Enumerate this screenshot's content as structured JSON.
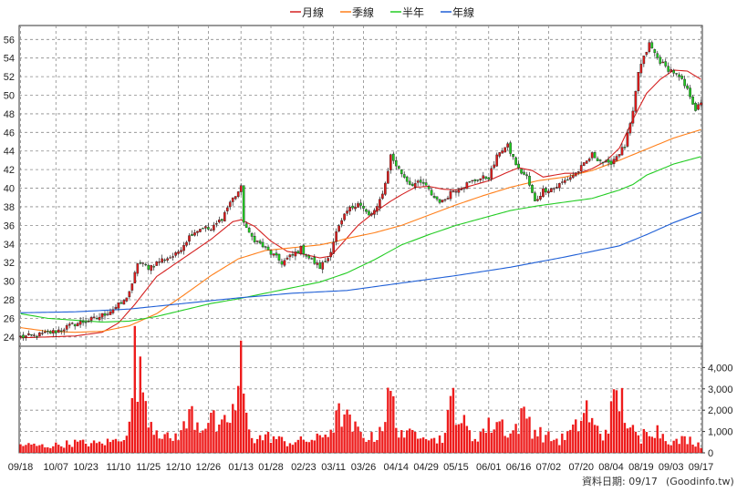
{
  "chart_data": {
    "type": "candlestick",
    "legend": [
      {
        "label": "月線",
        "color": "#d42020"
      },
      {
        "label": "季線",
        "color": "#ff7f1a"
      },
      {
        "label": "半年",
        "color": "#22cc22"
      },
      {
        "label": "年線",
        "color": "#1f5fd6"
      }
    ],
    "price_axis": {
      "ylim": [
        23,
        57.5
      ],
      "ticks": [
        "24",
        "26",
        "28",
        "30",
        "32",
        "34",
        "36",
        "38",
        "40",
        "42",
        "44",
        "46",
        "48",
        "50",
        "52",
        "54",
        "56"
      ]
    },
    "volume_axis": {
      "ylim": [
        0,
        5000
      ],
      "ticks": [
        "0",
        "1,000",
        "2,000",
        "3,000",
        "4,000"
      ]
    },
    "x_ticks": [
      "09/18",
      "10/07",
      "10/23",
      "11/10",
      "11/25",
      "12/10",
      "12/26",
      "01/13",
      "01/28",
      "02/23",
      "03/11",
      "03/26",
      "04/14",
      "04/29",
      "05/15",
      "06/01",
      "06/16",
      "07/02",
      "07/20",
      "08/04",
      "08/19",
      "09/03",
      "09/17"
    ],
    "x_tick_index": [
      0,
      13,
      24,
      36,
      47,
      58,
      69,
      81,
      92,
      104,
      115,
      126,
      138,
      149,
      160,
      172,
      183,
      194,
      206,
      217,
      228,
      239,
      250
    ],
    "n_days": 251,
    "price_keypoints": [
      [
        0,
        24
      ],
      [
        5,
        24.1
      ],
      [
        13,
        24.6
      ],
      [
        20,
        25.4
      ],
      [
        28,
        26
      ],
      [
        34,
        27
      ],
      [
        38,
        27.8
      ],
      [
        41,
        29.5
      ],
      [
        43,
        32
      ],
      [
        47,
        31.5
      ],
      [
        52,
        32.3
      ],
      [
        57,
        32.8
      ],
      [
        60,
        34
      ],
      [
        63,
        35.2
      ],
      [
        67,
        35.8
      ],
      [
        70,
        35.5
      ],
      [
        74,
        36.8
      ],
      [
        77,
        38.5
      ],
      [
        81,
        40
      ],
      [
        82,
        36.5
      ],
      [
        84,
        35
      ],
      [
        88,
        34
      ],
      [
        92,
        33
      ],
      [
        96,
        32
      ],
      [
        100,
        32.8
      ],
      [
        103,
        33.5
      ],
      [
        106,
        32.5
      ],
      [
        110,
        31.5
      ],
      [
        113,
        32.5
      ],
      [
        116,
        35.2
      ],
      [
        120,
        37.5
      ],
      [
        124,
        38.5
      ],
      [
        128,
        37
      ],
      [
        131,
        37.8
      ],
      [
        134,
        40.5
      ],
      [
        136,
        43.5
      ],
      [
        139,
        42
      ],
      [
        143,
        40.5
      ],
      [
        148,
        40.5
      ],
      [
        152,
        39
      ],
      [
        155,
        38.5
      ],
      [
        158,
        39.6
      ],
      [
        163,
        40.3
      ],
      [
        168,
        41
      ],
      [
        172,
        41.2
      ],
      [
        176,
        44
      ],
      [
        179,
        44.5
      ],
      [
        183,
        42
      ],
      [
        186,
        41.2
      ],
      [
        189,
        38.5
      ],
      [
        192,
        39.8
      ],
      [
        196,
        40
      ],
      [
        200,
        40.8
      ],
      [
        204,
        41.6
      ],
      [
        207,
        42.5
      ],
      [
        210,
        43.6
      ],
      [
        213,
        43
      ],
      [
        216,
        42.5
      ],
      [
        219,
        43.5
      ],
      [
        222,
        44.5
      ],
      [
        225,
        48
      ],
      [
        227,
        52.5
      ],
      [
        229,
        54
      ],
      [
        231,
        55.5
      ],
      [
        234,
        54
      ],
      [
        237,
        53
      ],
      [
        240,
        52.5
      ],
      [
        243,
        51.5
      ],
      [
        246,
        50
      ],
      [
        248,
        48.5
      ],
      [
        250,
        49
      ]
    ],
    "volume_keypoints": [
      [
        0,
        400
      ],
      [
        10,
        330
      ],
      [
        20,
        500
      ],
      [
        28,
        450
      ],
      [
        35,
        600
      ],
      [
        40,
        1200
      ],
      [
        42,
        4800
      ],
      [
        44,
        3500
      ],
      [
        46,
        2800
      ],
      [
        48,
        1500
      ],
      [
        55,
        600
      ],
      [
        60,
        1200
      ],
      [
        63,
        2000
      ],
      [
        66,
        1300
      ],
      [
        70,
        1800
      ],
      [
        73,
        1000
      ],
      [
        75,
        1400
      ],
      [
        79,
        2200
      ],
      [
        81,
        4200
      ],
      [
        83,
        1600
      ],
      [
        86,
        700
      ],
      [
        92,
        800
      ],
      [
        98,
        500
      ],
      [
        104,
        600
      ],
      [
        110,
        700
      ],
      [
        114,
        1200
      ],
      [
        118,
        2000
      ],
      [
        121,
        1400
      ],
      [
        125,
        900
      ],
      [
        130,
        700
      ],
      [
        134,
        1800
      ],
      [
        136,
        3000
      ],
      [
        138,
        1400
      ],
      [
        142,
        800
      ],
      [
        148,
        1200
      ],
      [
        152,
        600
      ],
      [
        156,
        900
      ],
      [
        159,
        2900
      ],
      [
        161,
        1800
      ],
      [
        166,
        700
      ],
      [
        171,
        1200
      ],
      [
        176,
        1600
      ],
      [
        180,
        900
      ],
      [
        186,
        2000
      ],
      [
        188,
        1200
      ],
      [
        193,
        800
      ],
      [
        198,
        600
      ],
      [
        204,
        1200
      ],
      [
        208,
        2200
      ],
      [
        210,
        1400
      ],
      [
        214,
        800
      ],
      [
        219,
        2700
      ],
      [
        221,
        2500
      ],
      [
        224,
        1200
      ],
      [
        228,
        500
      ],
      [
        230,
        1400
      ],
      [
        233,
        1200
      ],
      [
        240,
        500
      ],
      [
        245,
        700
      ],
      [
        250,
        400
      ]
    ],
    "ma_keypoints": [
      {
        "name": "月線",
        "color": "#d42020",
        "points": [
          [
            0,
            23.9
          ],
          [
            20,
            24.1
          ],
          [
            30,
            24.5
          ],
          [
            36,
            25.5
          ],
          [
            42,
            27.5
          ],
          [
            50,
            30.5
          ],
          [
            60,
            32.5
          ],
          [
            70,
            34.5
          ],
          [
            78,
            36.4
          ],
          [
            81,
            36.6
          ],
          [
            86,
            35.9
          ],
          [
            92,
            34.3
          ],
          [
            98,
            33.2
          ],
          [
            104,
            32.9
          ],
          [
            110,
            32.5
          ],
          [
            114,
            32.7
          ],
          [
            118,
            34
          ],
          [
            124,
            36
          ],
          [
            130,
            37.4
          ],
          [
            136,
            38.6
          ],
          [
            140,
            39.3
          ],
          [
            145,
            40.1
          ],
          [
            150,
            40.2
          ],
          [
            155,
            39.9
          ],
          [
            160,
            39.8
          ],
          [
            166,
            40.3
          ],
          [
            172,
            40.8
          ],
          [
            178,
            41.6
          ],
          [
            183,
            42.2
          ],
          [
            188,
            41.9
          ],
          [
            192,
            41.2
          ],
          [
            196,
            41.4
          ],
          [
            200,
            41.6
          ],
          [
            205,
            41.6
          ],
          [
            210,
            42.1
          ],
          [
            215,
            42.9
          ],
          [
            220,
            44.3
          ],
          [
            225,
            47.4
          ],
          [
            230,
            50.2
          ],
          [
            235,
            51.7
          ],
          [
            240,
            52.7
          ],
          [
            245,
            52.6
          ],
          [
            250,
            51.7
          ]
        ]
      },
      {
        "name": "季線",
        "color": "#ff7f1a",
        "points": [
          [
            0,
            25
          ],
          [
            10,
            24.6
          ],
          [
            20,
            24.5
          ],
          [
            30,
            24.6
          ],
          [
            40,
            25.2
          ],
          [
            50,
            26.5
          ],
          [
            60,
            28.5
          ],
          [
            70,
            30.6
          ],
          [
            80,
            32.4
          ],
          [
            90,
            33.3
          ],
          [
            100,
            33.6
          ],
          [
            110,
            33.9
          ],
          [
            115,
            34.2
          ],
          [
            120,
            34.6
          ],
          [
            130,
            35.2
          ],
          [
            140,
            36
          ],
          [
            150,
            37.1
          ],
          [
            160,
            38.2
          ],
          [
            170,
            39.2
          ],
          [
            180,
            40.1
          ],
          [
            190,
            40.8
          ],
          [
            200,
            41.2
          ],
          [
            210,
            41.9
          ],
          [
            220,
            43
          ],
          [
            230,
            44.2
          ],
          [
            240,
            45.4
          ],
          [
            250,
            46.3
          ]
        ]
      },
      {
        "name": "半年",
        "color": "#22cc22",
        "points": [
          [
            0,
            26.5
          ],
          [
            10,
            26
          ],
          [
            20,
            25.8
          ],
          [
            30,
            25.6
          ],
          [
            40,
            25.7
          ],
          [
            50,
            26.2
          ],
          [
            60,
            26.9
          ],
          [
            70,
            27.6
          ],
          [
            80,
            28.1
          ],
          [
            90,
            28.7
          ],
          [
            100,
            29.3
          ],
          [
            110,
            29.9
          ],
          [
            120,
            30.9
          ],
          [
            130,
            32.3
          ],
          [
            140,
            33.9
          ],
          [
            150,
            35
          ],
          [
            160,
            36
          ],
          [
            170,
            36.8
          ],
          [
            180,
            37.6
          ],
          [
            190,
            38.1
          ],
          [
            200,
            38.5
          ],
          [
            210,
            38.9
          ],
          [
            220,
            39.8
          ],
          [
            225,
            40.4
          ],
          [
            230,
            41.4
          ],
          [
            240,
            42.6
          ],
          [
            250,
            43.4
          ]
        ]
      },
      {
        "name": "年線",
        "color": "#1f5fd6",
        "points": [
          [
            0,
            26.6
          ],
          [
            20,
            26.7
          ],
          [
            40,
            27
          ],
          [
            60,
            27.6
          ],
          [
            80,
            28.2
          ],
          [
            100,
            28.7
          ],
          [
            120,
            29
          ],
          [
            130,
            29.4
          ],
          [
            140,
            29.8
          ],
          [
            160,
            30.6
          ],
          [
            180,
            31.5
          ],
          [
            200,
            32.6
          ],
          [
            220,
            33.8
          ],
          [
            230,
            35
          ],
          [
            240,
            36.3
          ],
          [
            250,
            37.4
          ]
        ]
      }
    ]
  },
  "footer": {
    "date_label": "資料日期: 09/17",
    "source": "(Goodinfo.tw)"
  }
}
